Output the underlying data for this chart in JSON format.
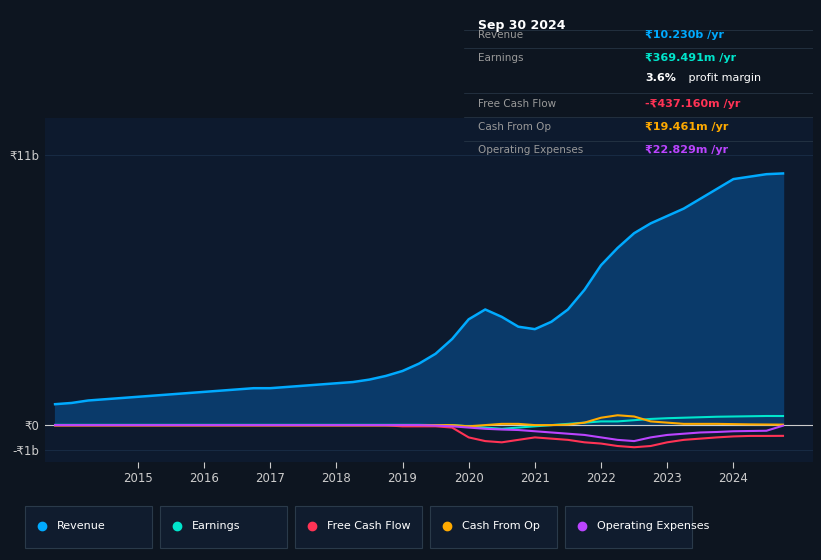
{
  "bg_color": "#0d1520",
  "plot_bg_color": "#0d1a2e",
  "grid_color": "#1a2e48",
  "years": [
    2013.75,
    2014.0,
    2014.25,
    2014.5,
    2014.75,
    2015.0,
    2015.25,
    2015.5,
    2015.75,
    2016.0,
    2016.25,
    2016.5,
    2016.75,
    2017.0,
    2017.25,
    2017.5,
    2017.75,
    2018.0,
    2018.25,
    2018.5,
    2018.75,
    2019.0,
    2019.25,
    2019.5,
    2019.75,
    2020.0,
    2020.25,
    2020.5,
    2020.75,
    2021.0,
    2021.25,
    2021.5,
    2021.75,
    2022.0,
    2022.25,
    2022.5,
    2022.75,
    2023.0,
    2023.25,
    2023.5,
    2023.75,
    2024.0,
    2024.25,
    2024.5,
    2024.75
  ],
  "revenue": [
    0.85,
    0.9,
    1.0,
    1.05,
    1.1,
    1.15,
    1.2,
    1.25,
    1.3,
    1.35,
    1.4,
    1.45,
    1.5,
    1.5,
    1.55,
    1.6,
    1.65,
    1.7,
    1.75,
    1.85,
    2.0,
    2.2,
    2.5,
    2.9,
    3.5,
    4.3,
    4.7,
    4.4,
    4.0,
    3.9,
    4.2,
    4.7,
    5.5,
    6.5,
    7.2,
    7.8,
    8.2,
    8.5,
    8.8,
    9.2,
    9.6,
    10.0,
    10.1,
    10.2,
    10.23
  ],
  "earnings": [
    0.01,
    0.01,
    0.01,
    0.01,
    0.01,
    0.01,
    0.01,
    0.01,
    0.01,
    0.01,
    0.01,
    0.01,
    0.01,
    0.01,
    0.01,
    0.01,
    0.01,
    0.01,
    0.01,
    0.01,
    0.01,
    0.01,
    0.01,
    0.0,
    0.0,
    -0.05,
    -0.1,
    -0.15,
    -0.1,
    -0.05,
    0.0,
    0.05,
    0.1,
    0.15,
    0.15,
    0.2,
    0.25,
    0.28,
    0.3,
    0.32,
    0.34,
    0.35,
    0.36,
    0.37,
    0.369
  ],
  "free_cash_flow": [
    -0.01,
    -0.01,
    -0.01,
    -0.01,
    -0.01,
    -0.01,
    -0.01,
    -0.01,
    -0.01,
    -0.01,
    -0.01,
    -0.01,
    -0.01,
    -0.01,
    -0.01,
    -0.01,
    -0.01,
    -0.01,
    -0.01,
    -0.01,
    -0.01,
    -0.05,
    -0.05,
    -0.05,
    -0.1,
    -0.5,
    -0.65,
    -0.7,
    -0.6,
    -0.5,
    -0.55,
    -0.6,
    -0.7,
    -0.75,
    -0.85,
    -0.9,
    -0.85,
    -0.7,
    -0.6,
    -0.55,
    -0.5,
    -0.46,
    -0.44,
    -0.44,
    -0.437
  ],
  "cash_from_op": [
    -0.01,
    -0.01,
    -0.01,
    -0.01,
    -0.01,
    -0.01,
    -0.01,
    -0.01,
    -0.01,
    -0.01,
    -0.01,
    -0.01,
    -0.01,
    -0.01,
    -0.01,
    -0.01,
    -0.01,
    -0.01,
    -0.01,
    -0.01,
    -0.01,
    0.0,
    0.0,
    0.0,
    0.0,
    -0.05,
    0.0,
    0.05,
    0.05,
    0.0,
    0.0,
    0.02,
    0.1,
    0.3,
    0.4,
    0.35,
    0.15,
    0.1,
    0.05,
    0.05,
    0.05,
    0.04,
    0.03,
    0.025,
    0.0194
  ],
  "operating_expenses": [
    0.0,
    0.0,
    0.0,
    0.0,
    0.0,
    0.0,
    0.0,
    0.0,
    0.0,
    0.0,
    0.0,
    0.0,
    0.0,
    0.0,
    0.0,
    0.0,
    0.0,
    0.0,
    0.0,
    0.0,
    0.0,
    0.0,
    0.0,
    -0.02,
    -0.05,
    -0.1,
    -0.15,
    -0.18,
    -0.2,
    -0.25,
    -0.3,
    -0.35,
    -0.4,
    -0.5,
    -0.6,
    -0.65,
    -0.5,
    -0.4,
    -0.35,
    -0.3,
    -0.28,
    -0.25,
    -0.24,
    -0.23,
    -0.0228
  ],
  "revenue_color": "#00aaff",
  "revenue_fill": "#0a3a6a",
  "earnings_color": "#00e5cc",
  "free_cash_flow_color": "#ff3355",
  "cash_from_op_color": "#ffaa00",
  "operating_expenses_color": "#bb44ff",
  "info_box_bg": "#050f1a",
  "info_box_border": "#2a3a4a",
  "info_box": {
    "title": "Sep 30 2024",
    "revenue_label": "Revenue",
    "revenue_value": "₹10.230b /yr",
    "earnings_label": "Earnings",
    "earnings_value": "₹369.491m /yr",
    "margin_bold": "3.6%",
    "margin_rest": " profit margin",
    "fcf_label": "Free Cash Flow",
    "fcf_value": "-₹437.160m /yr",
    "cashop_label": "Cash From Op",
    "cashop_value": "₹19.461m /yr",
    "opex_label": "Operating Expenses",
    "opex_value": "₹22.829m /yr"
  },
  "ytick_labels": [
    "-₹1b",
    "₹0",
    "₹11b"
  ],
  "ytick_vals": [
    -1.0,
    0.0,
    11.0
  ],
  "xtick_years": [
    2015,
    2016,
    2017,
    2018,
    2019,
    2020,
    2021,
    2022,
    2023,
    2024
  ],
  "ylim": [
    -1.5,
    12.5
  ],
  "xlim": [
    2013.6,
    2025.2
  ],
  "legend_items": [
    {
      "label": "Revenue",
      "color": "#00aaff"
    },
    {
      "label": "Earnings",
      "color": "#00e5cc"
    },
    {
      "label": "Free Cash Flow",
      "color": "#ff3355"
    },
    {
      "label": "Cash From Op",
      "color": "#ffaa00"
    },
    {
      "label": "Operating Expenses",
      "color": "#bb44ff"
    }
  ]
}
